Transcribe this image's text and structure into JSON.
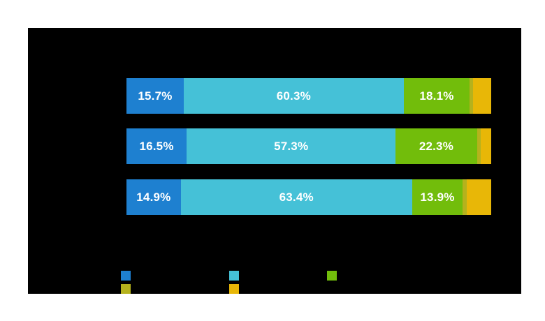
{
  "page": {
    "background_color": "#ffffff"
  },
  "panel": {
    "background_color": "#000000",
    "label_text_color": "#ffffff"
  },
  "chart_data": {
    "type": "bar",
    "orientation": "horizontal",
    "stacked": true,
    "unit": "%",
    "xlim": [
      0,
      100
    ],
    "grid": false,
    "axes_visible": false,
    "categories": [
      "",
      "",
      ""
    ],
    "series": [
      {
        "name": "series-1-blue",
        "color": "#1e80d0",
        "values": [
          15.7,
          16.5,
          14.9
        ],
        "labels": [
          "15.7%",
          "16.5%",
          "14.9%"
        ],
        "show_labels": true
      },
      {
        "name": "series-2-cyan",
        "color": "#45c1d7",
        "values": [
          60.3,
          57.3,
          63.4
        ],
        "labels": [
          "60.3%",
          "57.3%",
          "63.4%"
        ],
        "show_labels": true
      },
      {
        "name": "series-3-green",
        "color": "#72bd0b",
        "values": [
          18.1,
          22.3,
          13.9
        ],
        "labels": [
          "18.1%",
          "22.3%",
          "13.9%"
        ],
        "show_labels": true
      },
      {
        "name": "series-4-olive",
        "color": "#b5b21d",
        "values": [
          1.0,
          1.1,
          1.0
        ],
        "labels": [
          "",
          "",
          ""
        ],
        "show_labels": false
      },
      {
        "name": "series-5-orange",
        "color": "#e8b707",
        "values": [
          4.9,
          2.8,
          6.8
        ],
        "labels": [
          "",
          "",
          ""
        ],
        "show_labels": false
      }
    ],
    "legend": {
      "position": "bottom-left",
      "entries": [
        {
          "name": "legend-swatch-blue",
          "swatch_color": "#1e80d0",
          "row": 1,
          "col": 1
        },
        {
          "name": "legend-swatch-cyan",
          "swatch_color": "#45c1d7",
          "row": 1,
          "col": 2
        },
        {
          "name": "legend-swatch-green",
          "swatch_color": "#72bd0b",
          "row": 1,
          "col": 3
        },
        {
          "name": "legend-swatch-olive",
          "swatch_color": "#b5b21d",
          "row": 2,
          "col": 1
        },
        {
          "name": "legend-swatch-orange",
          "swatch_color": "#e8b707",
          "row": 2,
          "col": 2
        }
      ]
    }
  }
}
